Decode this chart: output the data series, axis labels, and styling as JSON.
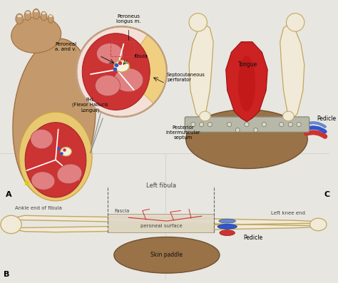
{
  "bg_color": "#e8e6e0",
  "skin_color": "#c49a6c",
  "skin_dark": "#a07040",
  "muscle_red": "#cc3333",
  "muscle_pink": "#e08080",
  "muscle_light": "#d46060",
  "bone_color": "#f2ead8",
  "bone_edge": "#c0a860",
  "fat_yellow": "#e8c870",
  "fat_edge": "#c8a040",
  "zoom_bg": "#f5e0d8",
  "zoom_fat": "#f0d080",
  "plate_color": "#b8b8a8",
  "plate_edge": "#888878",
  "tongue_color": "#cc2222",
  "tongue_dark": "#991111",
  "skin_paddle_color": "#9a7248",
  "skin_paddle_edge": "#705030",
  "fascia_color": "#e0d8c8",
  "fascia_edge": "#a89878",
  "vessel_red": "#cc3333",
  "vessel_blue": "#3355cc",
  "vessel_blue2": "#6688cc",
  "label_A": "A",
  "label_B": "B",
  "label_C": "C",
  "text_peroneal": "Peroneal\na. and v.",
  "text_fibula_zoom": "fibula",
  "text_peroneus": "Peroneus\nlongus m.",
  "text_septocutaneous": "Septocutaneous\nperforator",
  "text_FHL": "FHL\n(Flexor Hallucis\nLongus)",
  "text_left_fibula": "Left fibula",
  "text_peroneal_surface": "peroneal surface",
  "text_fascia": "Fascia",
  "text_skin_paddle": "Skin paddle",
  "text_ankle_end": "Ankle end of fibula",
  "text_left_knee": "Left knee end",
  "text_pedicle_B": "Pedicle",
  "text_tongue": "Tongue",
  "text_posterior": "Pesterior\nintermuscular\nseptum",
  "text_pedicle_C": "Pedicle"
}
